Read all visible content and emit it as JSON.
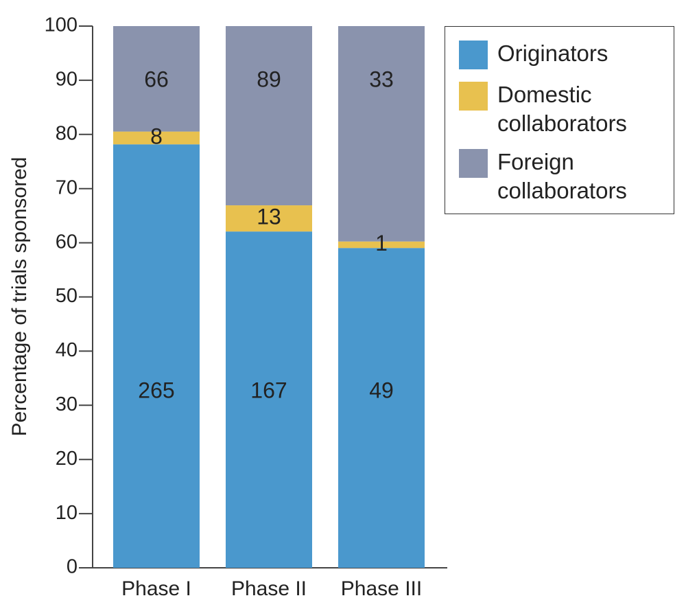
{
  "chart_data": {
    "type": "bar",
    "stack": "percent",
    "y_label": "Percentage of trials sponsored",
    "categories": [
      "Phase I",
      "Phase II",
      "Phase III"
    ],
    "series": [
      {
        "name": "Originators",
        "color": "#4a98cd",
        "values": [
          265,
          167,
          49
        ]
      },
      {
        "name": "Domestic collaborators",
        "color": "#e8c14f",
        "values": [
          8,
          13,
          1
        ]
      },
      {
        "name": "Foreign collaborators",
        "color": "#8a93ad",
        "values": [
          66,
          89,
          33
        ]
      }
    ],
    "ylim": [
      0,
      100
    ],
    "yticks": [
      0,
      10,
      20,
      30,
      40,
      50,
      60,
      70,
      80,
      90,
      100
    ],
    "legend": "upper right"
  }
}
